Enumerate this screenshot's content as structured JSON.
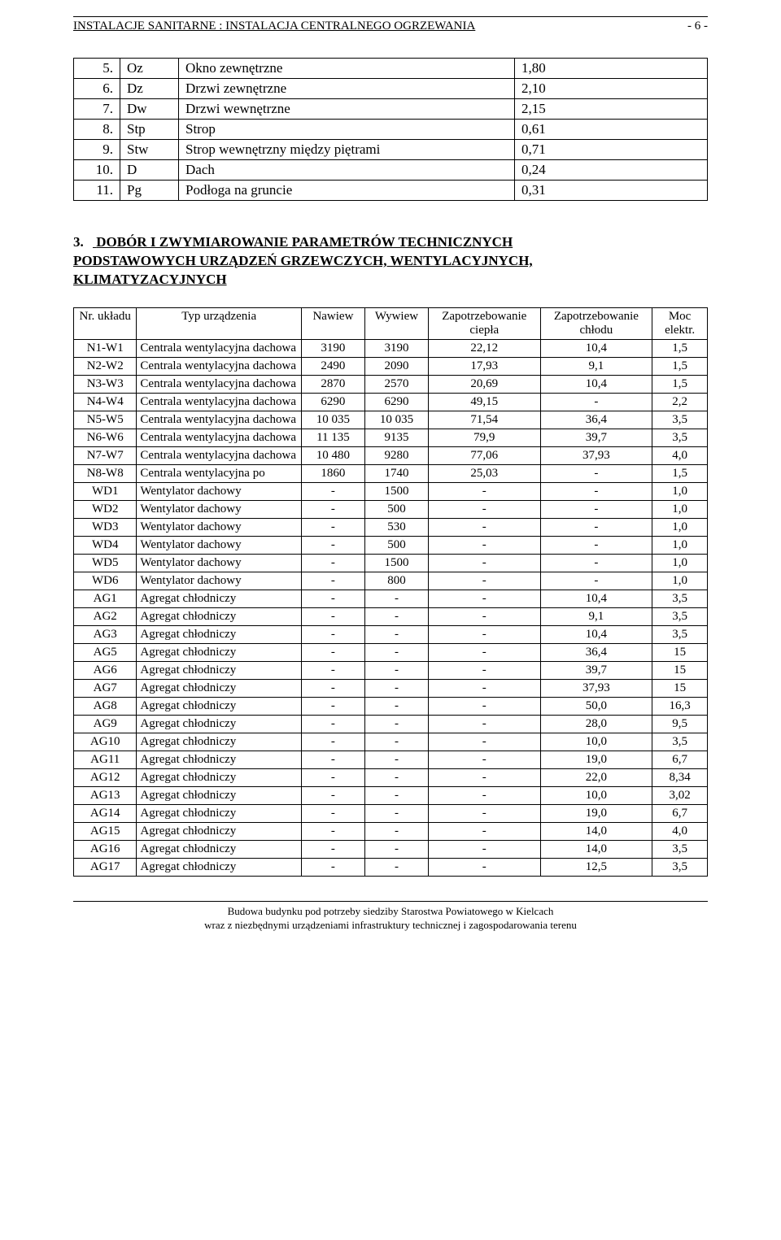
{
  "header": {
    "breadcrumb": "INSTALACJE SANITARNE : INSTALACJA CENTRALNEGO OGRZEWANIA",
    "page_number": "- 6 -"
  },
  "toplist": [
    {
      "n": "5.",
      "code": "Oz",
      "name": "Okno zewnętrzne",
      "val": "1,80"
    },
    {
      "n": "6.",
      "code": "Dz",
      "name": "Drzwi zewnętrzne",
      "val": "2,10"
    },
    {
      "n": "7.",
      "code": "Dw",
      "name": "Drzwi wewnętrzne",
      "val": "2,15"
    },
    {
      "n": "8.",
      "code": "Stp",
      "name": "Strop",
      "val": "0,61"
    },
    {
      "n": "9.",
      "code": "Stw",
      "name": "Strop wewnętrzny między piętrami",
      "val": "0,71"
    },
    {
      "n": "10.",
      "code": "D",
      "name": "Dach",
      "val": "0,24"
    },
    {
      "n": "11.",
      "code": "Pg",
      "name": "Podłoga na gruncie",
      "val": "0,31"
    }
  ],
  "section": {
    "number": "3.",
    "line1": "DOBÓR I ZWYMIAROWANIE PARAMETRÓW TECHNICZNYCH",
    "line2": "PODSTAWOWYCH URZĄDZEŃ GRZEWCZYCH, WENTYLACYJNYCH,",
    "line3": "KLIMATYZACYJNYCH"
  },
  "table": {
    "headers": {
      "nr": "Nr. układu",
      "typ": "Typ urządzenia",
      "nawiew": "Nawiew",
      "wywiew": "Wywiew",
      "zciepla": "Zapotrzebowanie ciepła",
      "zchlodu": "Zapotrzebowanie chłodu",
      "moc": "Moc elektr."
    },
    "rows": [
      {
        "nr": "N1-W1",
        "typ": "Centrala wentylacyjna dachowa",
        "naw": "3190",
        "wyw": "3190",
        "zc": "22,12",
        "zch": "10,4",
        "moc": "1,5"
      },
      {
        "nr": "N2-W2",
        "typ": "Centrala wentylacyjna dachowa",
        "naw": "2490",
        "wyw": "2090",
        "zc": "17,93",
        "zch": "9,1",
        "moc": "1,5"
      },
      {
        "nr": "N3-W3",
        "typ": "Centrala wentylacyjna dachowa",
        "naw": "2870",
        "wyw": "2570",
        "zc": "20,69",
        "zch": "10,4",
        "moc": "1,5"
      },
      {
        "nr": "N4-W4",
        "typ": "Centrala wentylacyjna dachowa",
        "naw": "6290",
        "wyw": "6290",
        "zc": "49,15",
        "zch": "-",
        "moc": "2,2"
      },
      {
        "nr": "N5-W5",
        "typ": "Centrala wentylacyjna dachowa",
        "naw": "10 035",
        "wyw": "10 035",
        "zc": "71,54",
        "zch": "36,4",
        "moc": "3,5"
      },
      {
        "nr": "N6-W6",
        "typ": "Centrala wentylacyjna dachowa",
        "naw": "11 135",
        "wyw": "9135",
        "zc": "79,9",
        "zch": "39,7",
        "moc": "3,5"
      },
      {
        "nr": "N7-W7",
        "typ": "Centrala wentylacyjna dachowa",
        "naw": "10 480",
        "wyw": "9280",
        "zc": "77,06",
        "zch": "37,93",
        "moc": "4,0"
      },
      {
        "nr": "N8-W8",
        "typ": "Centrala wentylacyjna po",
        "naw": "1860",
        "wyw": "1740",
        "zc": "25,03",
        "zch": "-",
        "moc": "1,5"
      },
      {
        "nr": "WD1",
        "typ": "Wentylator dachowy",
        "naw": "-",
        "wyw": "1500",
        "zc": "-",
        "zch": "-",
        "moc": "1,0"
      },
      {
        "nr": "WD2",
        "typ": "Wentylator dachowy",
        "naw": "-",
        "wyw": "500",
        "zc": "-",
        "zch": "-",
        "moc": "1,0"
      },
      {
        "nr": "WD3",
        "typ": "Wentylator dachowy",
        "naw": "-",
        "wyw": "530",
        "zc": "-",
        "zch": "-",
        "moc": "1,0"
      },
      {
        "nr": "WD4",
        "typ": "Wentylator dachowy",
        "naw": "-",
        "wyw": "500",
        "zc": "-",
        "zch": "-",
        "moc": "1,0"
      },
      {
        "nr": "WD5",
        "typ": "Wentylator dachowy",
        "naw": "-",
        "wyw": "1500",
        "zc": "-",
        "zch": "-",
        "moc": "1,0"
      },
      {
        "nr": "WD6",
        "typ": "Wentylator dachowy",
        "naw": "-",
        "wyw": "800",
        "zc": "-",
        "zch": "-",
        "moc": "1,0"
      },
      {
        "nr": "AG1",
        "typ": "Agregat chłodniczy",
        "naw": "-",
        "wyw": "-",
        "zc": "-",
        "zch": "10,4",
        "moc": "3,5"
      },
      {
        "nr": "AG2",
        "typ": "Agregat chłodniczy",
        "naw": "-",
        "wyw": "-",
        "zc": "-",
        "zch": "9,1",
        "moc": "3,5"
      },
      {
        "nr": "AG3",
        "typ": "Agregat chłodniczy",
        "naw": "-",
        "wyw": "-",
        "zc": "-",
        "zch": "10,4",
        "moc": "3,5"
      },
      {
        "nr": "AG5",
        "typ": "Agregat chłodniczy",
        "naw": "-",
        "wyw": "-",
        "zc": "-",
        "zch": "36,4",
        "moc": "15"
      },
      {
        "nr": "AG6",
        "typ": "Agregat chłodniczy",
        "naw": "-",
        "wyw": "-",
        "zc": "-",
        "zch": "39,7",
        "moc": "15"
      },
      {
        "nr": "AG7",
        "typ": "Agregat chłodniczy",
        "naw": "-",
        "wyw": "-",
        "zc": "-",
        "zch": "37,93",
        "moc": "15"
      },
      {
        "nr": "AG8",
        "typ": "Agregat chłodniczy",
        "naw": "-",
        "wyw": "-",
        "zc": "-",
        "zch": "50,0",
        "moc": "16,3"
      },
      {
        "nr": "AG9",
        "typ": "Agregat chłodniczy",
        "naw": "-",
        "wyw": "-",
        "zc": "-",
        "zch": "28,0",
        "moc": "9,5"
      },
      {
        "nr": "AG10",
        "typ": "Agregat chłodniczy",
        "naw": "-",
        "wyw": "-",
        "zc": "-",
        "zch": "10,0",
        "moc": "3,5"
      },
      {
        "nr": "AG11",
        "typ": "Agregat chłodniczy",
        "naw": "-",
        "wyw": "-",
        "zc": "-",
        "zch": "19,0",
        "moc": "6,7"
      },
      {
        "nr": "AG12",
        "typ": "Agregat chłodniczy",
        "naw": "-",
        "wyw": "-",
        "zc": "-",
        "zch": "22,0",
        "moc": "8,34"
      },
      {
        "nr": "AG13",
        "typ": "Agregat chłodniczy",
        "naw": "-",
        "wyw": "-",
        "zc": "-",
        "zch": "10,0",
        "moc": "3,02"
      },
      {
        "nr": "AG14",
        "typ": "Agregat chłodniczy",
        "naw": "-",
        "wyw": "-",
        "zc": "-",
        "zch": "19,0",
        "moc": "6,7"
      },
      {
        "nr": "AG15",
        "typ": "Agregat chłodniczy",
        "naw": "-",
        "wyw": "-",
        "zc": "-",
        "zch": "14,0",
        "moc": "4,0"
      },
      {
        "nr": "AG16",
        "typ": "Agregat chłodniczy",
        "naw": "-",
        "wyw": "-",
        "zc": "-",
        "zch": "14,0",
        "moc": "3,5"
      },
      {
        "nr": "AG17",
        "typ": "Agregat chłodniczy",
        "naw": "-",
        "wyw": "-",
        "zc": "-",
        "zch": "12,5",
        "moc": "3,5"
      }
    ]
  },
  "footer": {
    "line1": "Budowa budynku pod potrzeby siedziby Starostwa Powiatowego w Kielcach",
    "line2": "wraz z niezbędnymi urządzeniami infrastruktury technicznej i zagospodarowania terenu"
  }
}
